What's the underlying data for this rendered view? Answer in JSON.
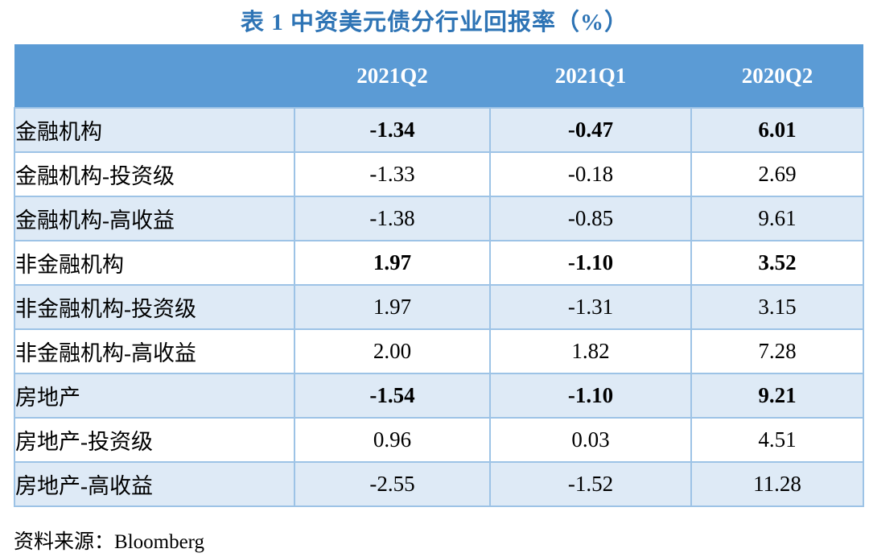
{
  "title": "表 1  中资美元债分行业回报率（%）",
  "source": {
    "label": "资料来源：",
    "value": "Bloomberg"
  },
  "colors": {
    "title_text": "#2E74B5",
    "header_bg": "#5B9BD5",
    "header_text": "#FFFFFF",
    "row_alt_bg": "#DEEAF6",
    "row_bg": "#FFFFFF",
    "cell_border": "#9DC3E6",
    "body_text": "#000000"
  },
  "table": {
    "columns": [
      "",
      "2021Q2",
      "2021Q1",
      "2020Q2"
    ],
    "rows": [
      {
        "label": "金融机构",
        "values": [
          "-1.34",
          "-0.47",
          "6.01"
        ],
        "bold": true
      },
      {
        "label": "金融机构-投资级",
        "values": [
          "-1.33",
          "-0.18",
          "2.69"
        ],
        "bold": false
      },
      {
        "label": "金融机构-高收益",
        "values": [
          "-1.38",
          "-0.85",
          "9.61"
        ],
        "bold": false
      },
      {
        "label": "非金融机构",
        "values": [
          "1.97",
          "-1.10",
          "3.52"
        ],
        "bold": true
      },
      {
        "label": "非金融机构-投资级",
        "values": [
          "1.97",
          "-1.31",
          "3.15"
        ],
        "bold": false
      },
      {
        "label": "非金融机构-高收益",
        "values": [
          "2.00",
          "1.82",
          "7.28"
        ],
        "bold": false
      },
      {
        "label": "房地产",
        "values": [
          "-1.54",
          "-1.10",
          "9.21"
        ],
        "bold": true
      },
      {
        "label": "房地产-投资级",
        "values": [
          "0.96",
          "0.03",
          "4.51"
        ],
        "bold": false
      },
      {
        "label": "房地产-高收益",
        "values": [
          "-2.55",
          "-1.52",
          "11.28"
        ],
        "bold": false
      }
    ]
  },
  "chart_data": {
    "type": "table",
    "title": "表 1  中资美元债分行业回报率（%）",
    "columns": [
      "2021Q2",
      "2021Q1",
      "2020Q2"
    ],
    "categories": [
      "金融机构",
      "金融机构-投资级",
      "金融机构-高收益",
      "非金融机构",
      "非金融机构-投资级",
      "非金融机构-高收益",
      "房地产",
      "房地产-投资级",
      "房地产-高收益"
    ],
    "series": [
      {
        "name": "2021Q2",
        "values": [
          -1.34,
          -1.33,
          -1.38,
          1.97,
          1.97,
          2.0,
          -1.54,
          0.96,
          -2.55
        ]
      },
      {
        "name": "2021Q1",
        "values": [
          -0.47,
          -0.18,
          -0.85,
          -1.1,
          -1.31,
          1.82,
          -1.1,
          0.03,
          -1.52
        ]
      },
      {
        "name": "2020Q2",
        "values": [
          6.01,
          2.69,
          9.61,
          3.52,
          3.15,
          7.28,
          9.21,
          4.51,
          11.28
        ]
      }
    ],
    "source": "资料来源：Bloomberg"
  }
}
